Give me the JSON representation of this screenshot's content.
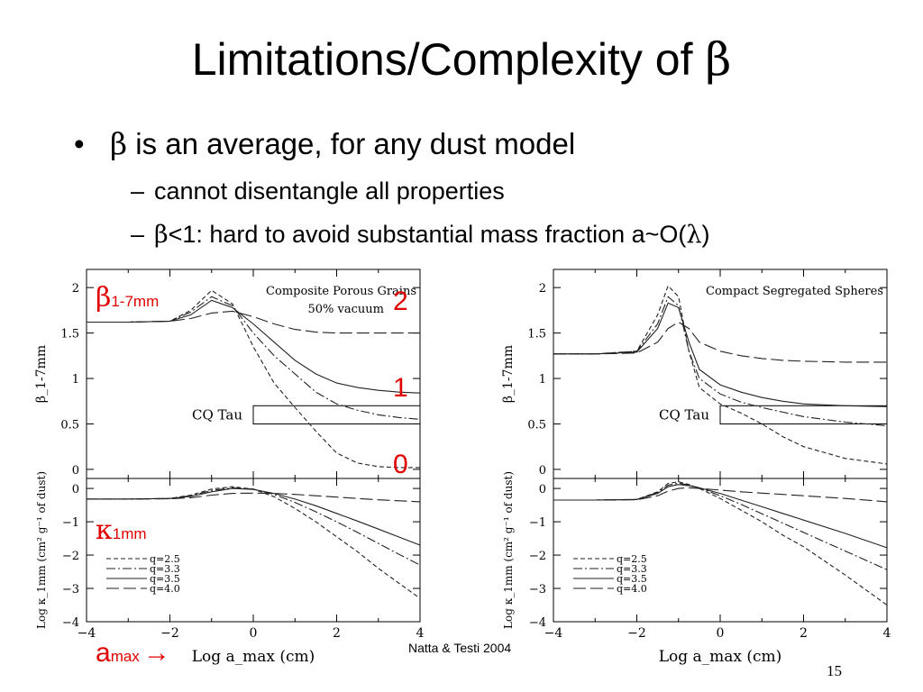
{
  "slide": {
    "title_text": "Limitations/Complexity of ",
    "title_greek": "β",
    "bullet_symbol": "•",
    "bullet1_greek": "β",
    "bullet1_text": " is an average, for any dust model",
    "sub_dash": "–",
    "sub1_text": "cannot disentangle all properties",
    "sub2_greek": "β",
    "sub2_text_a": "<1: hard to avoid substantial mass fraction a~O(",
    "sub2_greek2": "λ",
    "sub2_text_b": ")",
    "citation": "Natta & Testi 2004",
    "page_number": "15"
  },
  "overlay": {
    "beta_symbol": "β",
    "beta_sub": "1-7mm",
    "kappa_symbol": "κ",
    "kappa_sub": "1mm",
    "amax_main": "a",
    "amax_sub": "max",
    "arrow": "→",
    "mark_2": "2",
    "mark_1": "1",
    "mark_0": "0",
    "color": "#e00000"
  },
  "chart_data": [
    {
      "type": "line",
      "title": "Composite Porous Grains",
      "subtitle": "50% vacuum",
      "xlabel": "Log a_max (cm)",
      "ylabel_top": "β_1-7mm",
      "ylabel_bottom": "Log κ_1mm (cm² g⁻¹ of dust)",
      "xlim": [
        -4,
        4
      ],
      "xticks": [
        "−4",
        "−2",
        "0",
        "2",
        "4"
      ],
      "top_ylim": [
        -0.1,
        2.2
      ],
      "top_yticks": [
        "0",
        "0.5",
        "1",
        "1.5",
        "2"
      ],
      "bottom_ylim": [
        -4,
        0.3
      ],
      "bottom_yticks": [
        "0",
        "−1",
        "−2",
        "−3",
        "−4"
      ],
      "annotation": "CQ Tau",
      "cq_box": {
        "x": [
          0,
          4
        ],
        "y": [
          0.5,
          0.7
        ]
      },
      "legend": [
        "q=2.5",
        "q=3.3",
        "q=3.5",
        "q=4.0"
      ],
      "x": [
        -4,
        -3,
        -2,
        -1.5,
        -1,
        -0.5,
        0,
        0.5,
        1,
        1.5,
        2,
        2.5,
        3,
        3.5,
        4
      ],
      "beta_series": [
        {
          "name": "q=2.5",
          "style": "short-dash",
          "values": [
            1.62,
            1.62,
            1.63,
            1.75,
            1.97,
            1.82,
            1.35,
            0.95,
            0.68,
            0.42,
            0.18,
            0.07,
            0.03,
            0.02,
            0.02
          ]
        },
        {
          "name": "q=3.3",
          "style": "dash-dot",
          "values": [
            1.62,
            1.62,
            1.63,
            1.73,
            1.9,
            1.8,
            1.5,
            1.25,
            1.05,
            0.85,
            0.72,
            0.65,
            0.6,
            0.57,
            0.55
          ]
        },
        {
          "name": "q=3.5",
          "style": "solid",
          "values": [
            1.62,
            1.62,
            1.63,
            1.7,
            1.86,
            1.78,
            1.6,
            1.4,
            1.2,
            1.05,
            0.95,
            0.9,
            0.87,
            0.85,
            0.84
          ]
        },
        {
          "name": "q=4.0",
          "style": "long-dash",
          "values": [
            1.62,
            1.62,
            1.63,
            1.66,
            1.72,
            1.74,
            1.68,
            1.6,
            1.54,
            1.51,
            1.5,
            1.5,
            1.5,
            1.5,
            1.5
          ]
        }
      ],
      "kappa_series": [
        {
          "name": "q=2.5",
          "style": "short-dash",
          "values": [
            -0.32,
            -0.32,
            -0.3,
            -0.2,
            -0.02,
            0.05,
            -0.02,
            -0.25,
            -0.6,
            -1.0,
            -1.45,
            -1.9,
            -2.4,
            -2.85,
            -3.3
          ]
        },
        {
          "name": "q=3.3",
          "style": "dash-dot",
          "values": [
            -0.32,
            -0.32,
            -0.3,
            -0.22,
            -0.06,
            0.02,
            -0.02,
            -0.18,
            -0.42,
            -0.7,
            -1.0,
            -1.32,
            -1.65,
            -1.98,
            -2.3
          ]
        },
        {
          "name": "q=3.5",
          "style": "solid",
          "values": [
            -0.32,
            -0.32,
            -0.3,
            -0.24,
            -0.1,
            0.0,
            -0.03,
            -0.15,
            -0.32,
            -0.52,
            -0.75,
            -0.98,
            -1.22,
            -1.46,
            -1.7
          ]
        },
        {
          "name": "q=4.0",
          "style": "long-dash",
          "values": [
            -0.32,
            -0.32,
            -0.31,
            -0.28,
            -0.2,
            -0.15,
            -0.14,
            -0.15,
            -0.18,
            -0.22,
            -0.26,
            -0.3,
            -0.34,
            -0.37,
            -0.4
          ]
        }
      ]
    },
    {
      "type": "line",
      "title": "Compact Segregated Spheres",
      "subtitle": "",
      "xlabel": "Log a_max (cm)",
      "ylabel_top": "β_1-7mm",
      "ylabel_bottom": "Log κ_1mm (cm² g⁻¹ of dust)",
      "xlim": [
        -4,
        4
      ],
      "xticks": [
        "−4",
        "−2",
        "0",
        "2",
        "4"
      ],
      "top_ylim": [
        -0.1,
        2.2
      ],
      "top_yticks": [
        "0",
        "0.5",
        "1",
        "1.5",
        "2"
      ],
      "bottom_ylim": [
        -4,
        0.3
      ],
      "bottom_yticks": [
        "0",
        "−1",
        "−2",
        "−3",
        "−4"
      ],
      "annotation": "CQ Tau",
      "cq_box": {
        "x": [
          0,
          4
        ],
        "y": [
          0.5,
          0.7
        ]
      },
      "legend": [
        "q=2.5",
        "q=3.3",
        "q=3.5",
        "q=4.0"
      ],
      "x": [
        -4,
        -3,
        -2,
        -1.5,
        -1.25,
        -1,
        -0.75,
        -0.5,
        0,
        0.5,
        1,
        1.5,
        2,
        3,
        4
      ],
      "beta_series": [
        {
          "name": "q=2.5",
          "style": "short-dash",
          "values": [
            1.27,
            1.27,
            1.3,
            1.7,
            2.02,
            1.9,
            1.3,
            0.9,
            0.72,
            0.62,
            0.5,
            0.36,
            0.25,
            0.12,
            0.06
          ]
        },
        {
          "name": "q=3.3",
          "style": "dash-dot",
          "values": [
            1.27,
            1.27,
            1.3,
            1.6,
            1.9,
            1.8,
            1.3,
            1.0,
            0.83,
            0.74,
            0.68,
            0.63,
            0.58,
            0.52,
            0.48
          ]
        },
        {
          "name": "q=3.5",
          "style": "solid",
          "values": [
            1.27,
            1.27,
            1.29,
            1.55,
            1.83,
            1.78,
            1.4,
            1.1,
            0.93,
            0.85,
            0.79,
            0.75,
            0.72,
            0.7,
            0.69
          ]
        },
        {
          "name": "q=4.0",
          "style": "long-dash",
          "values": [
            1.27,
            1.27,
            1.28,
            1.4,
            1.55,
            1.62,
            1.55,
            1.4,
            1.3,
            1.25,
            1.22,
            1.2,
            1.19,
            1.18,
            1.18
          ]
        }
      ],
      "kappa_series": [
        {
          "name": "q=2.5",
          "style": "short-dash",
          "values": [
            -0.35,
            -0.35,
            -0.33,
            -0.1,
            0.15,
            0.2,
            0.12,
            0.0,
            -0.3,
            -0.65,
            -1.0,
            -1.4,
            -1.75,
            -2.6,
            -3.5
          ]
        },
        {
          "name": "q=3.3",
          "style": "dash-dot",
          "values": [
            -0.35,
            -0.35,
            -0.33,
            -0.12,
            0.1,
            0.16,
            0.1,
            0.02,
            -0.22,
            -0.48,
            -0.76,
            -1.04,
            -1.32,
            -1.88,
            -2.44
          ]
        },
        {
          "name": "q=3.5",
          "style": "solid",
          "values": [
            -0.35,
            -0.35,
            -0.33,
            -0.15,
            0.05,
            0.12,
            0.08,
            0.02,
            -0.15,
            -0.35,
            -0.55,
            -0.75,
            -0.95,
            -1.35,
            -1.78
          ]
        },
        {
          "name": "q=4.0",
          "style": "long-dash",
          "values": [
            -0.35,
            -0.35,
            -0.34,
            -0.22,
            -0.08,
            0.0,
            0.02,
            0.0,
            -0.05,
            -0.1,
            -0.14,
            -0.18,
            -0.22,
            -0.3,
            -0.4
          ]
        }
      ]
    }
  ]
}
